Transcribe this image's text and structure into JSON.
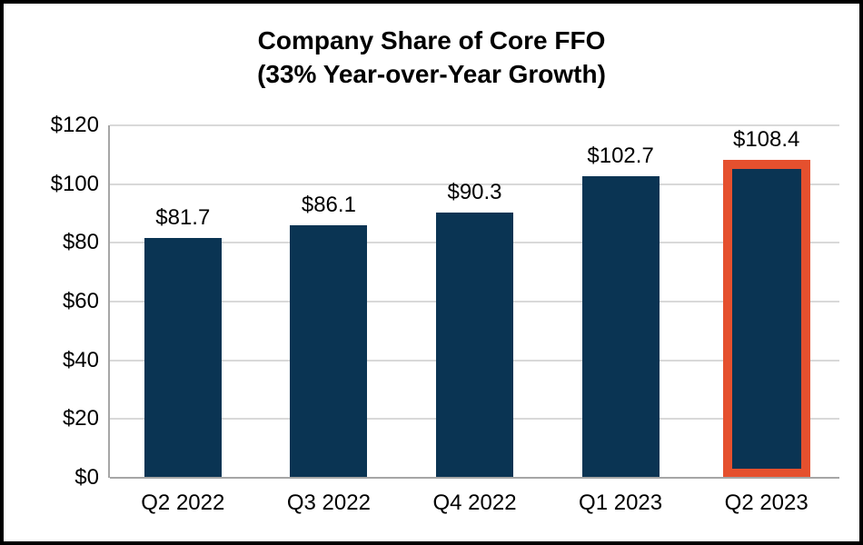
{
  "page": {
    "background_color": "#ffffff",
    "frame_color": "#000000"
  },
  "chart_data": {
    "type": "bar",
    "title_line1": "Company Share of Core FFO",
    "title_line2": "(33% Year-over-Year Growth)",
    "categories": [
      "Q2 2022",
      "Q3 2022",
      "Q4 2022",
      "Q1 2023",
      "Q2 2023"
    ],
    "values": [
      81.7,
      86.1,
      90.3,
      102.7,
      108.4
    ],
    "value_labels": [
      "$81.7",
      "$86.1",
      "$90.3",
      "$102.7",
      "$108.4"
    ],
    "xlabel": "",
    "ylabel": "",
    "ylim": [
      0,
      120
    ],
    "y_tick_step": 20,
    "y_tick_labels": [
      "$0",
      "$20",
      "$40",
      "$60",
      "$80",
      "$100",
      "$120"
    ],
    "grid": true,
    "legend": "none",
    "highlight_index": 4,
    "colors": {
      "bar": "#0a3453",
      "highlight_border": "#e5502e",
      "gridline": "#d9d9d9",
      "axis_line": "#a6a6a6",
      "text": "#000000"
    }
  }
}
